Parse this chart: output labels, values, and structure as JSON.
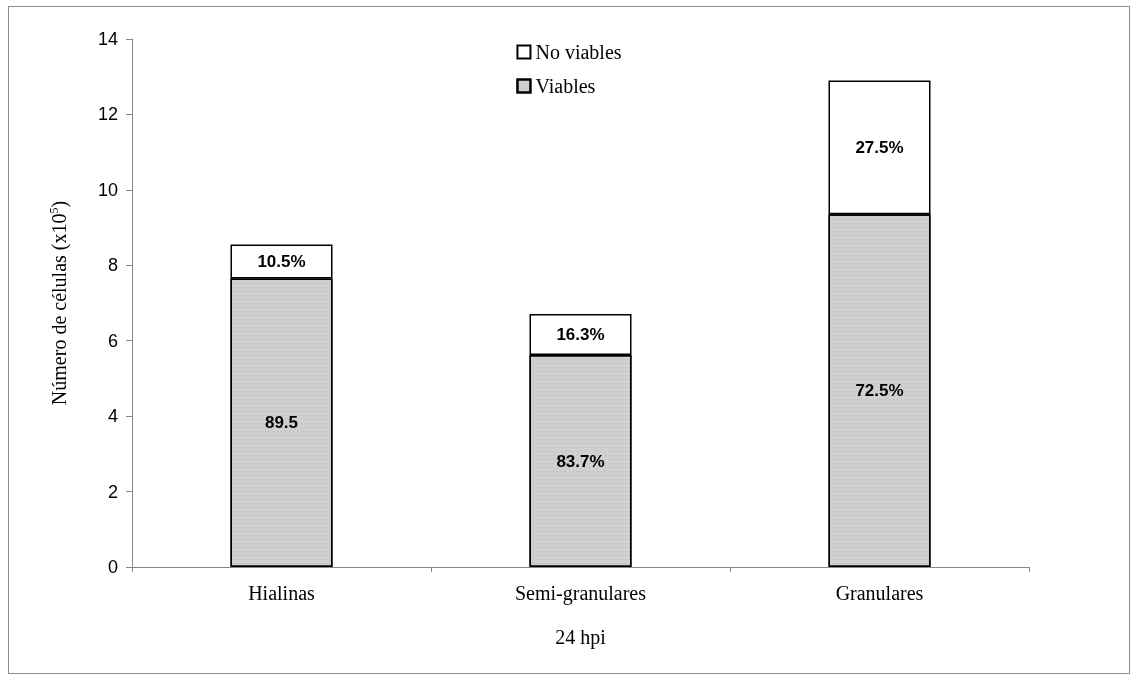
{
  "chart_data": {
    "type": "bar",
    "stacked": true,
    "xlabel": "24 hpi",
    "ylabel": "Número de células (x10$^{5}$)",
    "categories": [
      "Hialinas",
      "Semi-granulares",
      "Granulares"
    ],
    "series": [
      {
        "name": "Viables",
        "color": "#d0d0d0",
        "values": [
          7.65,
          5.62,
          9.35
        ]
      },
      {
        "name": "No viables",
        "color": "#ffffff",
        "values": [
          0.9,
          1.09,
          3.55
        ]
      }
    ],
    "annotations": [
      "89.5",
      "83.7%",
      "72.5%",
      "10.5%",
      "16.3%",
      "27.5%"
    ],
    "ylim": [
      0,
      14
    ],
    "yticks": [
      0,
      2,
      4,
      6,
      8,
      10,
      12,
      14
    ],
    "grid": false,
    "legend": "top"
  }
}
